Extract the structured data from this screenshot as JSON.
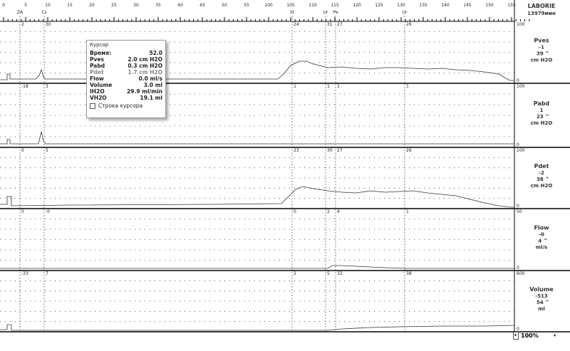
{
  "brand": "LABORIE",
  "session": "13979мин",
  "ruler": {
    "ticks": [
      "0",
      "5",
      "10",
      "15",
      "20",
      "25",
      "30",
      "35",
      "40",
      "45",
      "50",
      "55",
      "100",
      "105",
      "110",
      "115",
      "120",
      "125",
      "130",
      "135",
      "140",
      "145",
      "150",
      "155"
    ],
    "events": [
      "ZA",
      "Cs",
      "St",
      "Ur",
      "Pe",
      "Ur"
    ]
  },
  "channels": [
    {
      "name": "Pves",
      "offset": "-1",
      "value": "39 ^",
      "unit": "cm H2O",
      "scale_top": "100",
      "scale_bottom": "0",
      "markers": [
        "2",
        "30",
        "24",
        "31",
        "27",
        "26"
      ]
    },
    {
      "name": "Pabd",
      "offset": "1",
      "value": "23 ^",
      "unit": "cm H2O",
      "scale_top": "100",
      "scale_bottom": "0",
      "markers": [
        "-18",
        "3",
        "1",
        "1",
        "1",
        "1"
      ]
    },
    {
      "name": "Pdet",
      "offset": "-2",
      "value": "38 ^",
      "unit": "cm H2O",
      "scale_top": "100",
      "scale_bottom": "0",
      "markers": [
        "0",
        "5",
        "23",
        "30",
        "27",
        "26"
      ]
    },
    {
      "name": "Flow",
      "offset": "-0",
      "value": "4 ^",
      "unit": "ml/s",
      "scale_top": "50",
      "scale_bottom": "0",
      "markers": [
        "0",
        "-0",
        "0",
        "2",
        "4",
        "1"
      ]
    },
    {
      "name": "Volume",
      "offset": "-513",
      "value": "54 ^",
      "unit": "ml",
      "scale_top": "600",
      "scale_bottom": "0",
      "markers": [
        "-33",
        "7",
        "2",
        "5",
        "32",
        "38"
      ]
    }
  ],
  "cursor": {
    "title": "Курсор",
    "rows": [
      [
        "Время:",
        "52.0"
      ],
      [
        "Pves",
        "2.0 cm H2O"
      ],
      [
        "Pabd",
        "0.3 cm H2O"
      ],
      [
        "Pdet",
        "1.7 cm H2O"
      ],
      [
        "Flow",
        "0.0 ml/s"
      ],
      [
        "Volume",
        "3.0 ml"
      ],
      [
        "IH2O",
        "29.9 ml/min"
      ],
      [
        "VH2O",
        "19.1 ml"
      ]
    ],
    "checkbox": "Строка курсора"
  },
  "zoom": "100%"
}
